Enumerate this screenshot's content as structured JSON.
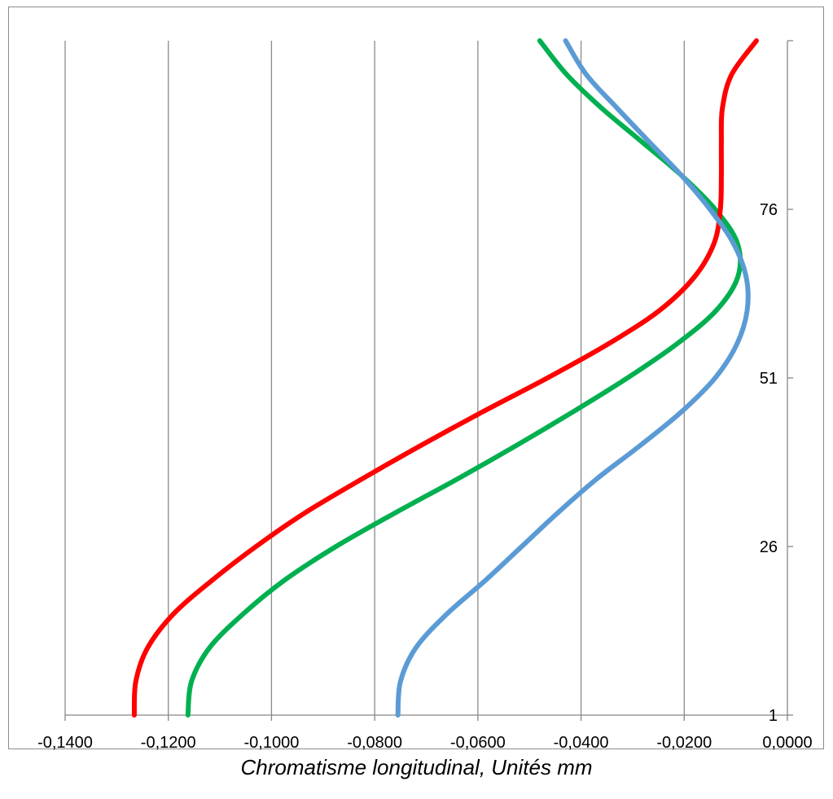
{
  "chart_data": {
    "type": "line",
    "title": "",
    "xlabel": "Chromatisme longitudinal, Unités mm",
    "ylabel": "",
    "xlim": [
      -0.14,
      0.0
    ],
    "ylim": [
      1,
      101
    ],
    "x_ticks": [
      "-0,1400",
      "-0,1200",
      "-0,1000",
      "-0,0800",
      "-0,0600",
      "-0,0400",
      "-0,0200",
      "0,0000"
    ],
    "x_tick_values": [
      -0.14,
      -0.12,
      -0.1,
      -0.08,
      -0.06,
      -0.04,
      -0.02,
      0.0
    ],
    "y_ticks": [
      "1",
      "26",
      "51",
      "76"
    ],
    "y_tick_values": [
      1,
      26,
      51,
      76
    ],
    "grid": "vertical",
    "legend": "none",
    "series": [
      {
        "color": "#ff0000",
        "points": [
          [
            -0.1266,
            1
          ],
          [
            -0.1263,
            6
          ],
          [
            -0.124,
            11
          ],
          [
            -0.119,
            16
          ],
          [
            -0.1115,
            21
          ],
          [
            -0.103,
            26
          ],
          [
            -0.0935,
            31
          ],
          [
            -0.0825,
            36
          ],
          [
            -0.071,
            41
          ],
          [
            -0.059,
            46
          ],
          [
            -0.0465,
            51
          ],
          [
            -0.0348,
            56
          ],
          [
            -0.0248,
            61
          ],
          [
            -0.018,
            66
          ],
          [
            -0.0142,
            71
          ],
          [
            -0.013,
            76
          ],
          [
            -0.0128,
            81
          ],
          [
            -0.0128,
            86
          ],
          [
            -0.0126,
            91
          ],
          [
            -0.0108,
            96
          ],
          [
            -0.006,
            101
          ]
        ]
      },
      {
        "color": "#00b050",
        "points": [
          [
            -0.1162,
            1
          ],
          [
            -0.1155,
            6
          ],
          [
            -0.112,
            11
          ],
          [
            -0.1055,
            16
          ],
          [
            -0.0975,
            21
          ],
          [
            -0.0875,
            26
          ],
          [
            -0.076,
            31
          ],
          [
            -0.064,
            36
          ],
          [
            -0.0525,
            41
          ],
          [
            -0.0415,
            46
          ],
          [
            -0.031,
            51
          ],
          [
            -0.0215,
            56
          ],
          [
            -0.0138,
            61
          ],
          [
            -0.0096,
            66
          ],
          [
            -0.0097,
            71
          ],
          [
            -0.014,
            76
          ],
          [
            -0.0205,
            81
          ],
          [
            -0.0282,
            86
          ],
          [
            -0.036,
            91
          ],
          [
            -0.0428,
            96
          ],
          [
            -0.048,
            101
          ]
        ]
      },
      {
        "color": "#5b9bd5",
        "points": [
          [
            -0.0755,
            1
          ],
          [
            -0.075,
            6
          ],
          [
            -0.072,
            11
          ],
          [
            -0.066,
            16
          ],
          [
            -0.0585,
            21
          ],
          [
            -0.0515,
            26
          ],
          [
            -0.0445,
            31
          ],
          [
            -0.037,
            36
          ],
          [
            -0.0285,
            41
          ],
          [
            -0.0205,
            46
          ],
          [
            -0.014,
            51
          ],
          [
            -0.0098,
            56
          ],
          [
            -0.0078,
            61
          ],
          [
            -0.008,
            66
          ],
          [
            -0.0105,
            71
          ],
          [
            -0.015,
            76
          ],
          [
            -0.0205,
            81
          ],
          [
            -0.0268,
            86
          ],
          [
            -0.033,
            91
          ],
          [
            -0.039,
            96
          ],
          [
            -0.043,
            101
          ]
        ]
      }
    ]
  }
}
